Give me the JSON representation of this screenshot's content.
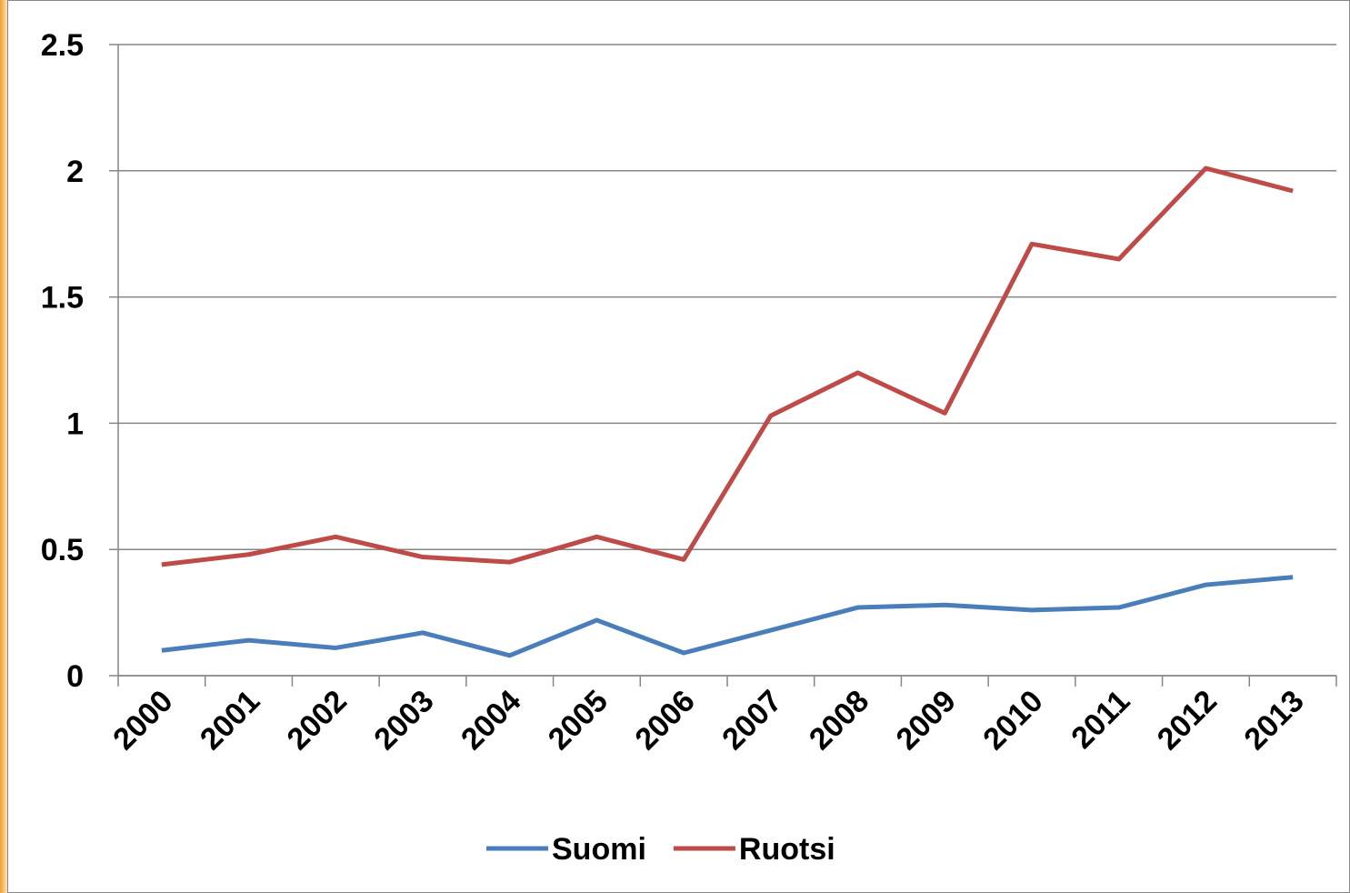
{
  "chart_data": {
    "type": "line",
    "categories": [
      "2000",
      "2001",
      "2002",
      "2003",
      "2004",
      "2005",
      "2006",
      "2007",
      "2008",
      "2009",
      "2010",
      "2011",
      "2012",
      "2013"
    ],
    "series": [
      {
        "name": "Suomi",
        "color": "#4a7ebb",
        "values": [
          0.1,
          0.14,
          0.11,
          0.17,
          0.08,
          0.22,
          0.09,
          0.18,
          0.27,
          0.28,
          0.26,
          0.27,
          0.36,
          0.39
        ]
      },
      {
        "name": "Ruotsi",
        "color": "#be4b48",
        "values": [
          0.44,
          0.48,
          0.55,
          0.47,
          0.45,
          0.55,
          0.46,
          1.03,
          1.2,
          1.04,
          1.71,
          1.65,
          2.01,
          1.92
        ]
      }
    ],
    "ylim": [
      0,
      2.5
    ],
    "yticks": [
      0,
      0.5,
      1,
      1.5,
      2,
      2.5
    ],
    "grid": true,
    "legend": "bottom"
  }
}
